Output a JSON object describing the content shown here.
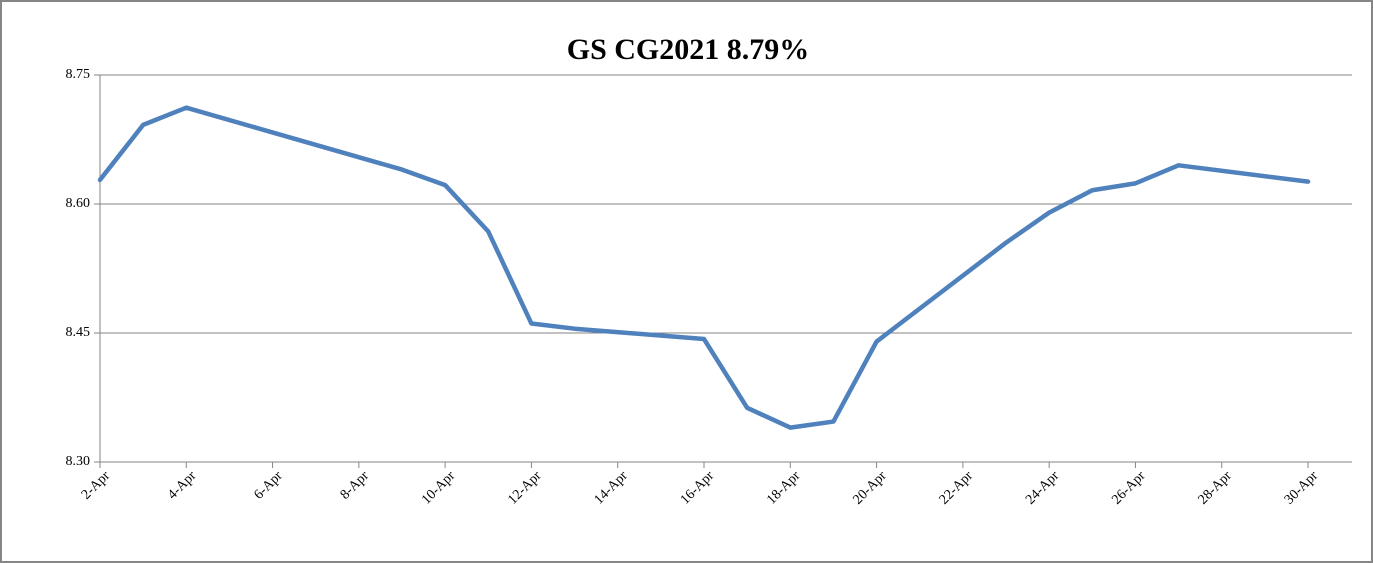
{
  "chart_data": {
    "type": "line",
    "title": "GS CG2021 8.79%",
    "x": [
      "2-Apr",
      "3-Apr",
      "4-Apr",
      "9-Apr",
      "10-Apr",
      "11-Apr",
      "12-Apr",
      "13-Apr",
      "16-Apr",
      "17-Apr",
      "18-Apr",
      "19-Apr",
      "20-Apr",
      "23-Apr",
      "24-Apr",
      "25-Apr",
      "26-Apr",
      "27-Apr",
      "30-Apr"
    ],
    "series": [
      {
        "color": "#4f81bd",
        "values": [
          8.628,
          8.692,
          8.712,
          8.64,
          8.622,
          8.568,
          8.461,
          8.455,
          8.443,
          8.363,
          8.34,
          8.347,
          8.44,
          8.555,
          8.59,
          8.616,
          8.624,
          8.645,
          8.626
        ]
      }
    ],
    "xlim": [
      "2-Apr",
      "30-Apr"
    ],
    "xticks": [
      "2-Apr",
      "4-Apr",
      "6-Apr",
      "8-Apr",
      "10-Apr",
      "12-Apr",
      "14-Apr",
      "16-Apr",
      "18-Apr",
      "20-Apr",
      "22-Apr",
      "24-Apr",
      "26-Apr",
      "28-Apr",
      "30-Apr"
    ],
    "ylim": [
      8.3,
      8.75
    ],
    "yticks": [
      {
        "value": 8.3,
        "label": "8.30"
      },
      {
        "value": 8.45,
        "label": "8.45"
      },
      {
        "value": 8.6,
        "label": "8.60"
      },
      {
        "value": 8.75,
        "label": "8.75"
      }
    ],
    "grid": true
  }
}
